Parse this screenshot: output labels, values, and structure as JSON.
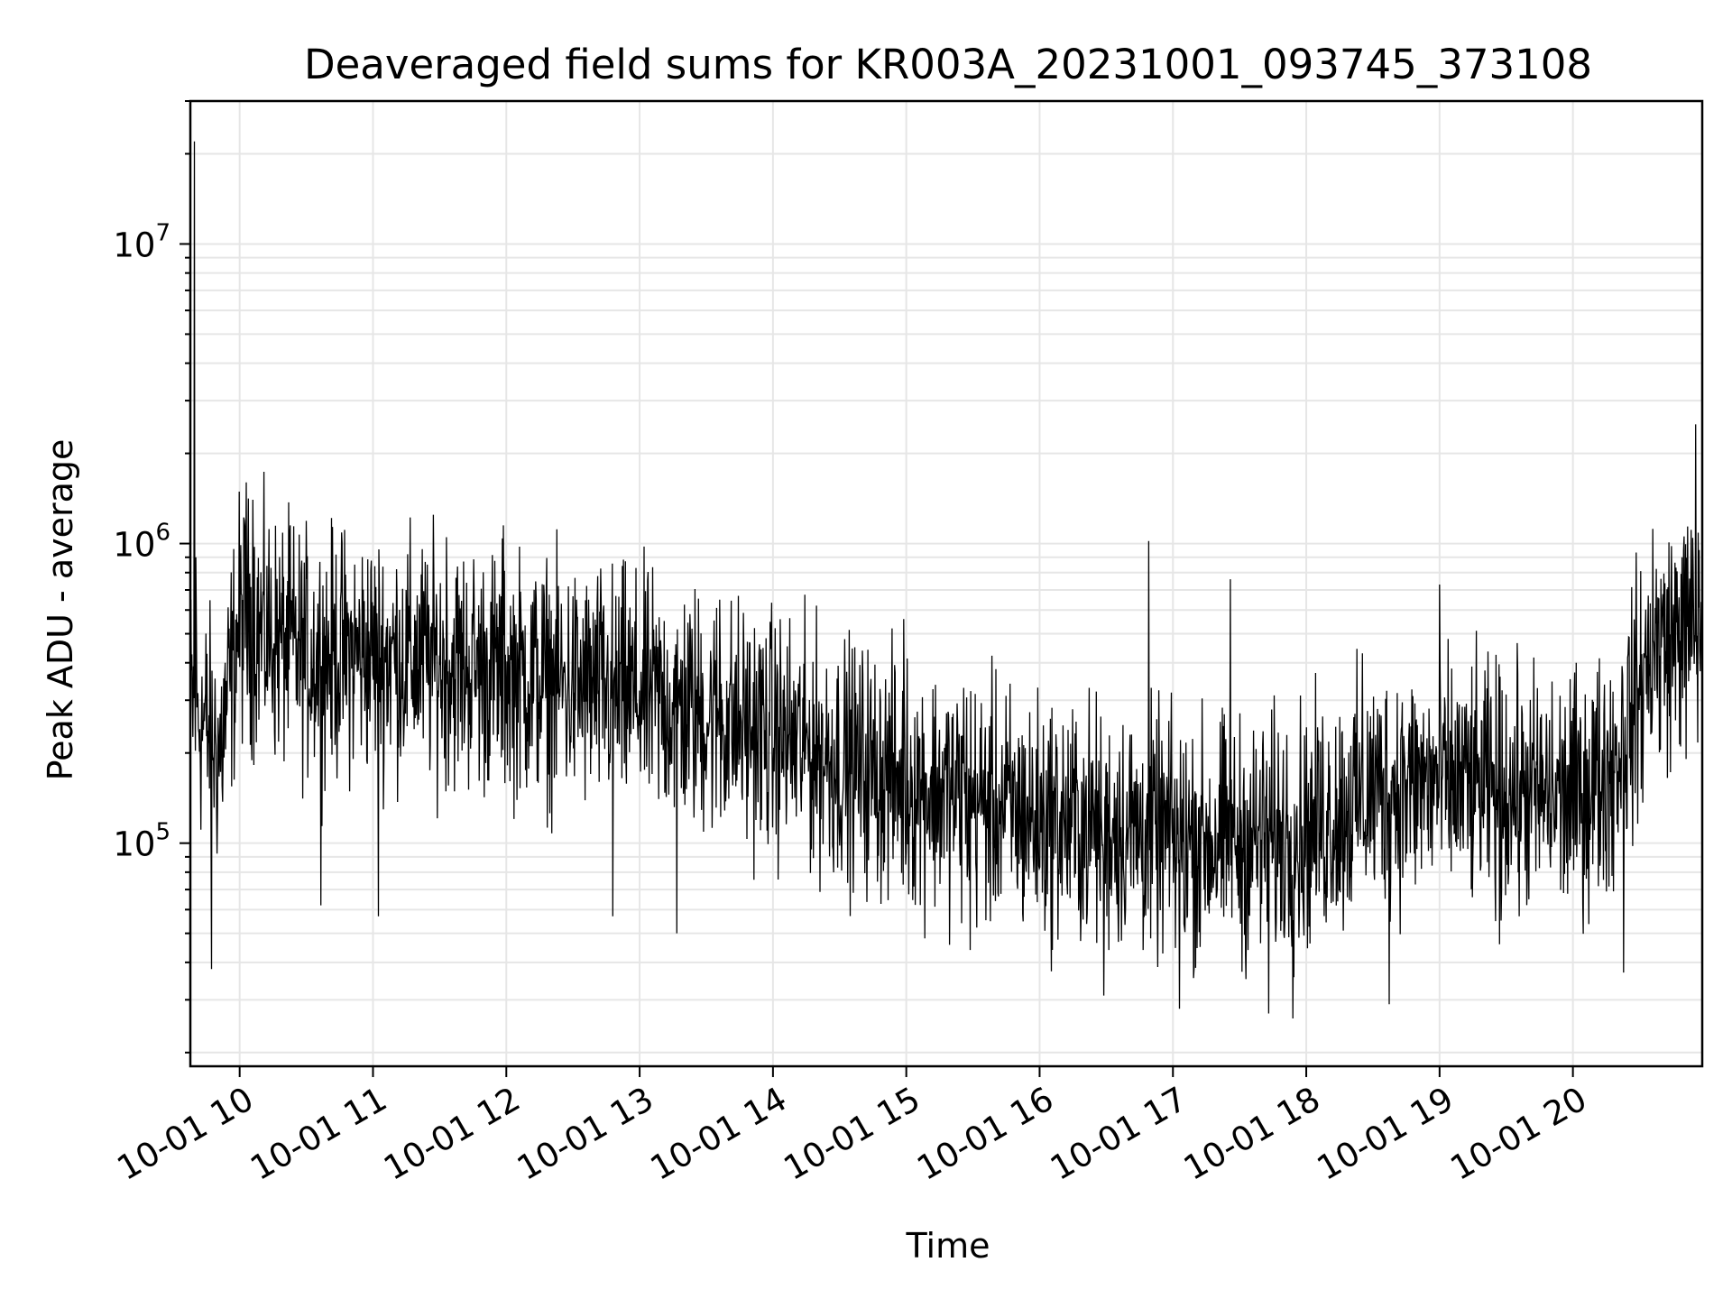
{
  "chart_data": {
    "type": "line",
    "title": "Deaveraged field sums for KR003A_20231001_093745_373108",
    "xlabel": "Time",
    "ylabel": "Peak ADU - average",
    "yscale": "log",
    "xlim_hours": [
      9.63,
      20.97
    ],
    "ylim": [
      18000,
      30000000
    ],
    "grid": true,
    "x_ticks": [
      {
        "hour": 10,
        "label": "10-01 10"
      },
      {
        "hour": 11,
        "label": "10-01 11"
      },
      {
        "hour": 12,
        "label": "10-01 12"
      },
      {
        "hour": 13,
        "label": "10-01 13"
      },
      {
        "hour": 14,
        "label": "10-01 14"
      },
      {
        "hour": 15,
        "label": "10-01 15"
      },
      {
        "hour": 16,
        "label": "10-01 16"
      },
      {
        "hour": 17,
        "label": "10-01 17"
      },
      {
        "hour": 18,
        "label": "10-01 18"
      },
      {
        "hour": 19,
        "label": "10-01 19"
      },
      {
        "hour": 20,
        "label": "10-01 20"
      }
    ],
    "y_major_ticks": [
      {
        "value": 100000,
        "base": "10",
        "exp": "5"
      },
      {
        "value": 1000000,
        "base": "10",
        "exp": "6"
      },
      {
        "value": 10000000,
        "base": "10",
        "exp": "7"
      }
    ],
    "series": [
      {
        "name": "deaveraged field sums",
        "color": "#000000",
        "trend": {
          "hours": [
            9.63,
            9.78,
            9.85,
            10.0,
            10.5,
            11.0,
            11.5,
            12.0,
            12.5,
            13.0,
            13.5,
            14.0,
            14.5,
            15.0,
            15.5,
            16.0,
            16.5,
            17.0,
            17.5,
            18.0,
            18.5,
            19.0,
            19.5,
            20.0,
            20.3,
            20.6,
            20.8,
            20.97
          ],
          "values": [
            300000,
            230000,
            200000,
            560000,
            420000,
            430000,
            400000,
            370000,
            330000,
            310000,
            270000,
            230000,
            190000,
            160000,
            140000,
            120000,
            115000,
            105000,
            100000,
            110000,
            150000,
            160000,
            150000,
            140000,
            180000,
            430000,
            500000,
            520000
          ]
        },
        "spikes": [
          {
            "hour": 9.66,
            "value": 22000000
          },
          {
            "hour": 9.67,
            "value": 900000
          },
          {
            "hour": 9.79,
            "value": 38000
          },
          {
            "hour": 10.05,
            "value": 1600000
          },
          {
            "hour": 10.1,
            "value": 1400000
          },
          {
            "hour": 10.38,
            "value": 1150000
          },
          {
            "hour": 10.61,
            "value": 62000
          },
          {
            "hour": 11.04,
            "value": 57000
          },
          {
            "hour": 11.55,
            "value": 1050000
          },
          {
            "hour": 11.98,
            "value": 1150000
          },
          {
            "hour": 12.8,
            "value": 57000
          },
          {
            "hour": 13.28,
            "value": 50000
          },
          {
            "hour": 13.6,
            "value": 650000
          },
          {
            "hour": 14.98,
            "value": 560000
          },
          {
            "hour": 15.43,
            "value": 330000
          },
          {
            "hour": 15.48,
            "value": 44000
          },
          {
            "hour": 16.48,
            "value": 31000
          },
          {
            "hour": 16.82,
            "value": 1020000
          },
          {
            "hour": 17.05,
            "value": 28000
          },
          {
            "hour": 17.43,
            "value": 760000
          },
          {
            "hour": 17.72,
            "value": 27000
          },
          {
            "hour": 17.9,
            "value": 26000
          },
          {
            "hour": 18.42,
            "value": 430000
          },
          {
            "hour": 18.62,
            "value": 29000
          },
          {
            "hour": 19.0,
            "value": 730000
          },
          {
            "hour": 19.45,
            "value": 46000
          },
          {
            "hour": 20.38,
            "value": 37000
          },
          {
            "hour": 20.6,
            "value": 1120000
          },
          {
            "hour": 20.82,
            "value": 900000
          },
          {
            "hour": 20.92,
            "value": 2500000
          }
        ],
        "noise_spread_decades": 0.6,
        "sample_count": 3000
      }
    ]
  }
}
